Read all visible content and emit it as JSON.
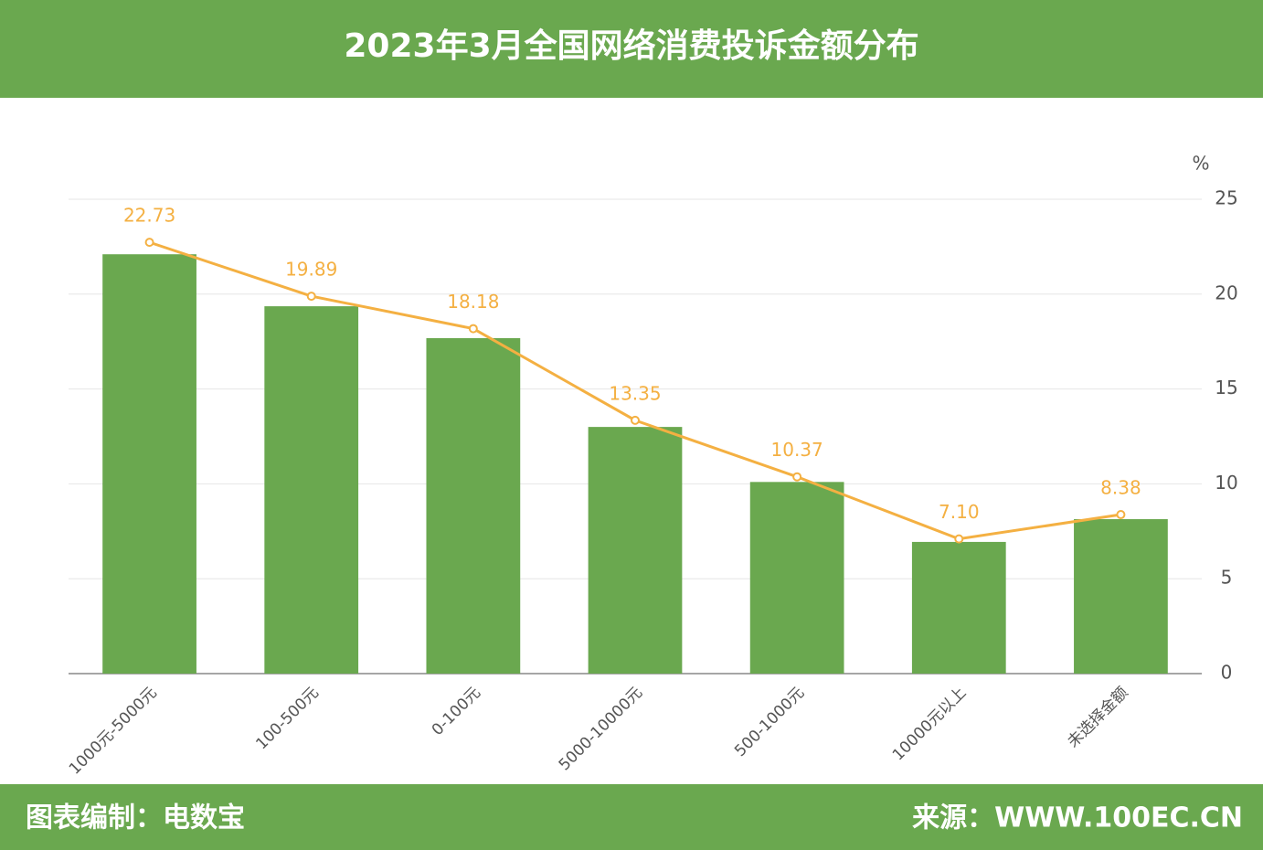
{
  "title": "2023年3月全国网络消费投诉金额分布",
  "footer": {
    "left": "图表编制：电数宝",
    "right": "来源：WWW.100EC.CN"
  },
  "chart_data": {
    "type": "combo",
    "categories": [
      "1000元-5000元",
      "100-500元",
      "0-100元",
      "5000-10000元",
      "500-1000元",
      "10000元以上",
      "未选择金额"
    ],
    "series": [
      {
        "type": "bar",
        "color": "#6aa84f",
        "values": [
          22.1,
          19.36,
          17.68,
          13.0,
          10.1,
          6.94,
          8.14
        ]
      },
      {
        "type": "line",
        "color": "#f4b042",
        "values": [
          22.73,
          19.89,
          18.18,
          13.35,
          10.37,
          7.1,
          8.38
        ],
        "value_labels": [
          "22.73",
          "19.89",
          "18.18",
          "13.35",
          "10.37",
          "7.10",
          "8.38"
        ]
      }
    ],
    "y_label": "%",
    "ylim": [
      0,
      25
    ],
    "yticks": [
      0,
      5,
      10,
      15,
      20,
      25
    ],
    "y_axis_side": "right",
    "grid": true
  }
}
